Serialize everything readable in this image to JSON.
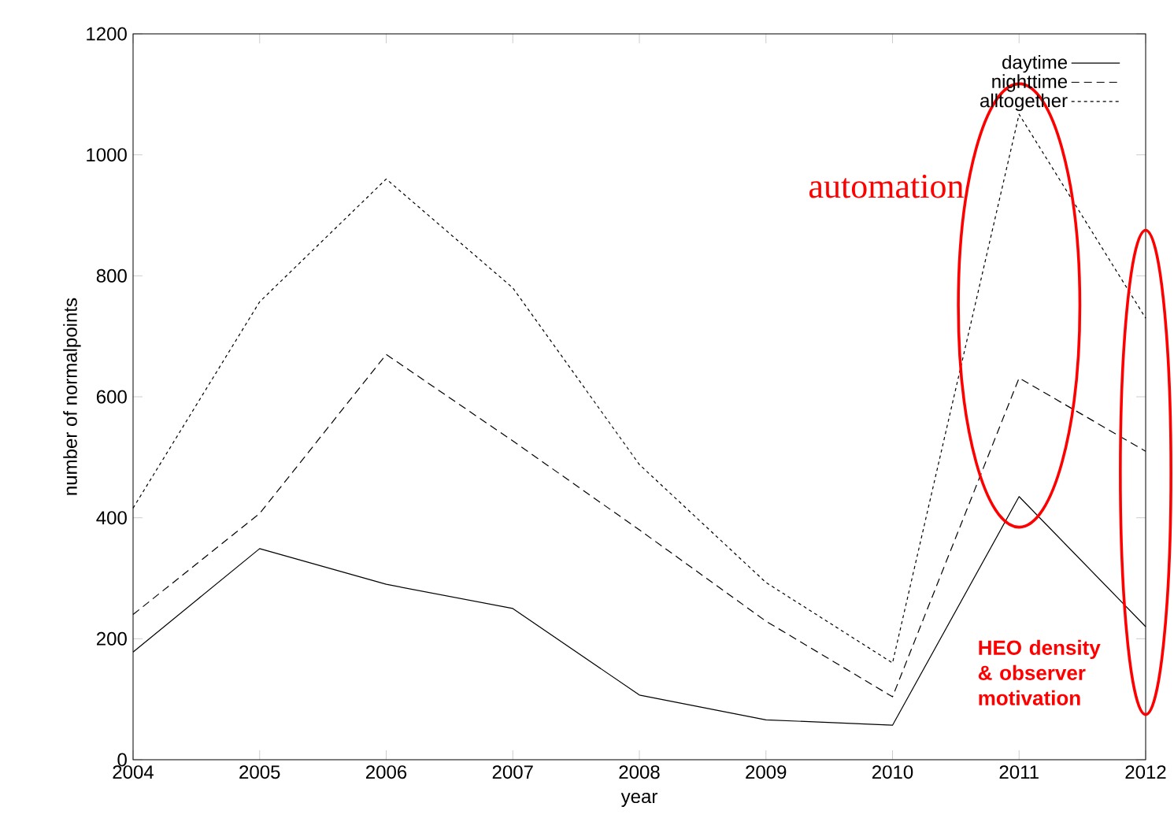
{
  "chart_data": {
    "type": "line",
    "xlabel": "year",
    "ylabel": "number of normalpoints",
    "x": [
      2004,
      2005,
      2006,
      2007,
      2008,
      2009,
      2010,
      2011,
      2012
    ],
    "series": [
      {
        "name": "daytime",
        "color": "#000000",
        "line_style": "solid",
        "values": [
          178,
          349,
          290,
          250,
          107,
          66,
          57,
          435,
          220
        ]
      },
      {
        "name": "nighttime",
        "color": "#000000",
        "line_style": "dashed",
        "values": [
          240,
          407,
          670,
          527,
          380,
          229,
          104,
          631,
          510
        ]
      },
      {
        "name": "alltogether",
        "color": "#000000",
        "line_style": "dotted",
        "values": [
          416,
          757,
          960,
          780,
          488,
          293,
          160,
          1067,
          730
        ]
      }
    ],
    "xlim": [
      2004,
      2012
    ],
    "xticks": [
      2004,
      2005,
      2006,
      2007,
      2008,
      2009,
      2010,
      2011,
      2012
    ],
    "ylim": [
      0,
      1200
    ],
    "yticks": [
      0,
      200,
      400,
      600,
      800,
      1000,
      1200
    ],
    "legend": "top right",
    "grid": false,
    "marker": "none",
    "annotations": [
      "automation",
      "HEO density & observer motivation"
    ]
  }
}
